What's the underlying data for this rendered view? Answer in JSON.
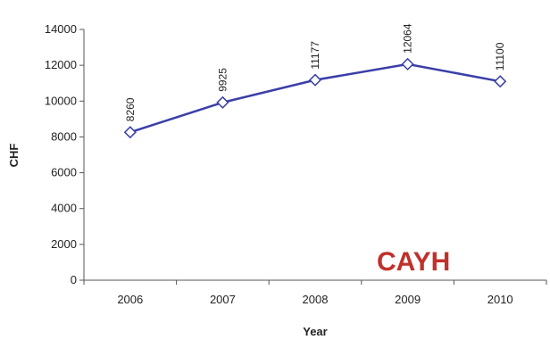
{
  "chart_data": {
    "type": "line",
    "categories": [
      "2006",
      "2007",
      "2008",
      "2009",
      "2010"
    ],
    "series": [
      {
        "values": [
          8260,
          9925,
          11177,
          12064,
          11100
        ],
        "color": "#3a3fa8"
      }
    ],
    "data_labels": [
      "8260",
      "9925",
      "11177",
      "12064",
      "11100"
    ],
    "xlabel": "Year",
    "ylabel": "CHF",
    "ylim": [
      0,
      14000
    ],
    "yticks": [
      "0",
      "2000",
      "4000",
      "6000",
      "8000",
      "10000",
      "12000",
      "14000"
    ],
    "grid": false,
    "legend": "none",
    "marker": "hollow-diamond"
  },
  "annotation": {
    "text": "CAYH",
    "color": "#c0312b"
  }
}
